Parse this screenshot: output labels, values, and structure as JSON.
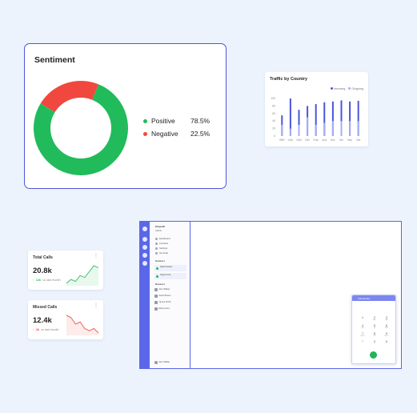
{
  "sentiment": {
    "title": "Sentiment",
    "items": [
      {
        "label": "Positive",
        "value": "78.5%",
        "color": "#22bb5c"
      },
      {
        "label": "Negative",
        "value": "22.5%",
        "color": "#f0483e"
      }
    ]
  },
  "traffic": {
    "title": "Traffic by Country",
    "legend": [
      "Incoming",
      "Outgoing"
    ]
  },
  "chart_data": [
    {
      "type": "pie",
      "title": "Sentiment",
      "categories": [
        "Positive",
        "Negative"
      ],
      "values": [
        78.5,
        22.5
      ],
      "colors": [
        "#22bb5c",
        "#f0483e"
      ]
    },
    {
      "type": "bar",
      "title": "Traffic by Country",
      "categories": [
        "GBR",
        "USA",
        "CAN",
        "IND",
        "Fran",
        "Aus",
        "Bra",
        "Ger",
        "Nep",
        "Viet"
      ],
      "series": [
        {
          "name": "Incoming",
          "values": [
            55,
            100,
            70,
            80,
            85,
            90,
            92,
            95,
            92,
            94
          ],
          "color": "#4a56d6"
        },
        {
          "name": "Outgoing",
          "values": [
            30,
            20,
            30,
            50,
            30,
            35,
            40,
            40,
            40,
            40
          ],
          "color": "#a8aff0"
        }
      ],
      "yticks": [
        "0",
        "20",
        "40",
        "60",
        "80",
        "100"
      ],
      "ylim": [
        0,
        100
      ]
    },
    {
      "type": "line",
      "title": "Total Calls",
      "values": [
        2,
        3,
        2.5,
        4,
        3.5,
        5,
        6.5,
        6
      ],
      "color": "#3fc46e"
    },
    {
      "type": "line",
      "title": "Missed Calls",
      "values": [
        6,
        5.5,
        4,
        4.5,
        3,
        2.5,
        3,
        2
      ],
      "color": "#f0605a"
    }
  ],
  "stats": [
    {
      "label": "Total Calls",
      "value": "20.8k",
      "delta": "12k",
      "note": "vs last month",
      "up": true
    },
    {
      "label": "Missed Calls",
      "value": "12.4k",
      "delta": "2k",
      "note": "vs last month",
      "up": false
    }
  ],
  "app": {
    "workspace_name": "Krispcall",
    "workspace_sub": "Admin",
    "menu": [
      "Dashboard",
      "Contacts",
      "Settings",
      "Get Help"
    ],
    "numbers_header": "Numbers",
    "numbers": [
      "Sales Number",
      "Support Line"
    ],
    "members_header": "Members",
    "members": [
      "Alex Walker",
      "Sarah Brown",
      "James Smith",
      "Ella Gomez"
    ],
    "user_name": "Alex Walker",
    "dialer_title": "Call Number",
    "keys": [
      {
        "d": "1",
        "s": ""
      },
      {
        "d": "2",
        "s": "ABC"
      },
      {
        "d": "3",
        "s": "DEF"
      },
      {
        "d": "4",
        "s": "GHI"
      },
      {
        "d": "5",
        "s": "JKL"
      },
      {
        "d": "6",
        "s": "MNO"
      },
      {
        "d": "7",
        "s": "PQRS"
      },
      {
        "d": "8",
        "s": "TUV"
      },
      {
        "d": "9",
        "s": "WXYZ"
      },
      {
        "d": "*",
        "s": ""
      },
      {
        "d": "0",
        "s": "+"
      },
      {
        "d": "#",
        "s": ""
      }
    ]
  }
}
